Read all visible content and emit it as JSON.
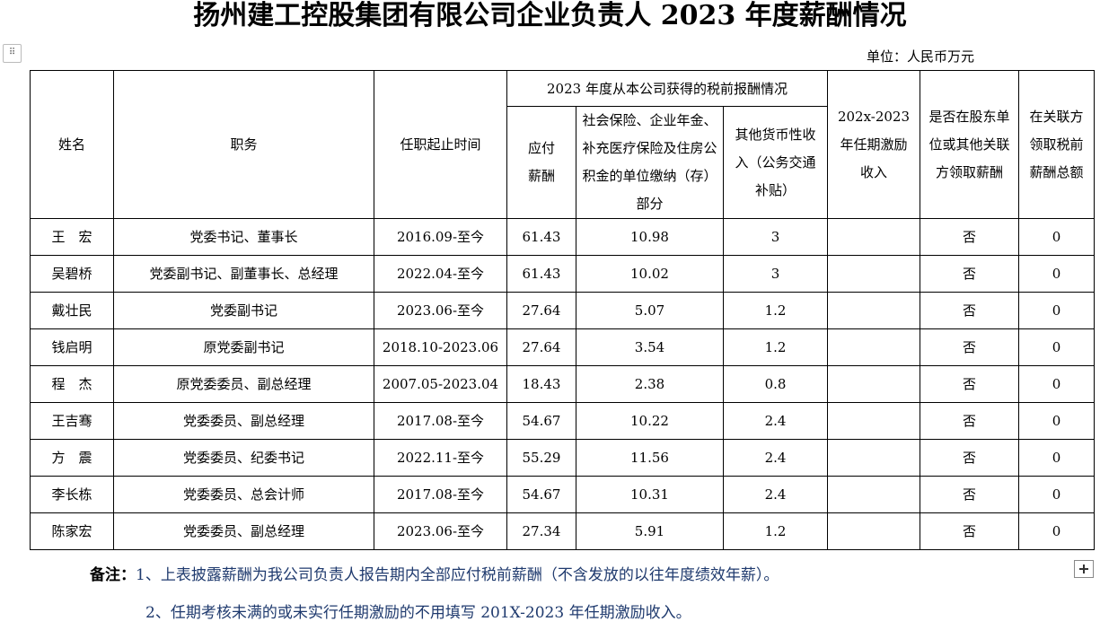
{
  "title": "扬州建工控股集团有限公司企业负责人 2023 年度薪酬情况",
  "unit": "单位：人民币万元",
  "headers": {
    "name": "姓名",
    "position": "职务",
    "term": "任职起止时间",
    "group": "2023 年度从本公司获得的税前报酬情况",
    "salary": "应付薪酬",
    "insurance": "社会保险、企业年金、补充医疗保险及住房公积金的单位缴纳（存）部分",
    "other": "其他货币性收入（公务交通补贴）",
    "incentive": "202x-2023年任期激励收入",
    "related": "是否在股东单位或其他关联方领取薪酬",
    "related_total": "在关联方领取税前薪酬总额"
  },
  "rows": [
    {
      "name": "王　宏",
      "position": "党委书记、董事长",
      "term": "2016.09-至今",
      "salary": "61.43",
      "insurance": "10.98",
      "other": "3",
      "incentive": "",
      "related": "否",
      "related_total": "0"
    },
    {
      "name": "吴碧桥",
      "position": "党委副书记、副董事长、总经理",
      "term": "2022.04-至今",
      "salary": "61.43",
      "insurance": "10.02",
      "other": "3",
      "incentive": "",
      "related": "否",
      "related_total": "0"
    },
    {
      "name": "戴壮民",
      "position": "党委副书记",
      "term": "2023.06-至今",
      "salary": "27.64",
      "insurance": "5.07",
      "other": "1.2",
      "incentive": "",
      "related": "否",
      "related_total": "0"
    },
    {
      "name": "钱启明",
      "position": "原党委副书记",
      "term": "2018.10-2023.06",
      "salary": "27.64",
      "insurance": "3.54",
      "other": "1.2",
      "incentive": "",
      "related": "否",
      "related_total": "0"
    },
    {
      "name": "程　杰",
      "position": "原党委委员、副总经理",
      "term": "2007.05-2023.04",
      "salary": "18.43",
      "insurance": "2.38",
      "other": "0.8",
      "incentive": "",
      "related": "否",
      "related_total": "0"
    },
    {
      "name": "王吉骞",
      "position": "党委委员、副总经理",
      "term": "2017.08-至今",
      "salary": "54.67",
      "insurance": "10.22",
      "other": "2.4",
      "incentive": "",
      "related": "否",
      "related_total": "0"
    },
    {
      "name": "方　震",
      "position": "党委委员、纪委书记",
      "term": "2022.11-至今",
      "salary": "55.29",
      "insurance": "11.56",
      "other": "2.4",
      "incentive": "",
      "related": "否",
      "related_total": "0"
    },
    {
      "name": "李长栋",
      "position": "党委委员、总会计师",
      "term": "2017.08-至今",
      "salary": "54.67",
      "insurance": "10.31",
      "other": "2.4",
      "incentive": "",
      "related": "否",
      "related_total": "0"
    },
    {
      "name": "陈家宏",
      "position": "党委委员、副总经理",
      "term": "2023.06-至今",
      "salary": "27.34",
      "insurance": "5.91",
      "other": "1.2",
      "incentive": "",
      "related": "否",
      "related_total": "0"
    }
  ],
  "notes": {
    "label": "备注：",
    "note1": "1、上表披露薪酬为我公司负责人报告期内全部应付税前薪酬（不含发放的以往年度绩效年薪）。",
    "note2": "2、任期考核未满的或未实行任期激励的不用填写 201X-2023 年任期激励收入。"
  }
}
